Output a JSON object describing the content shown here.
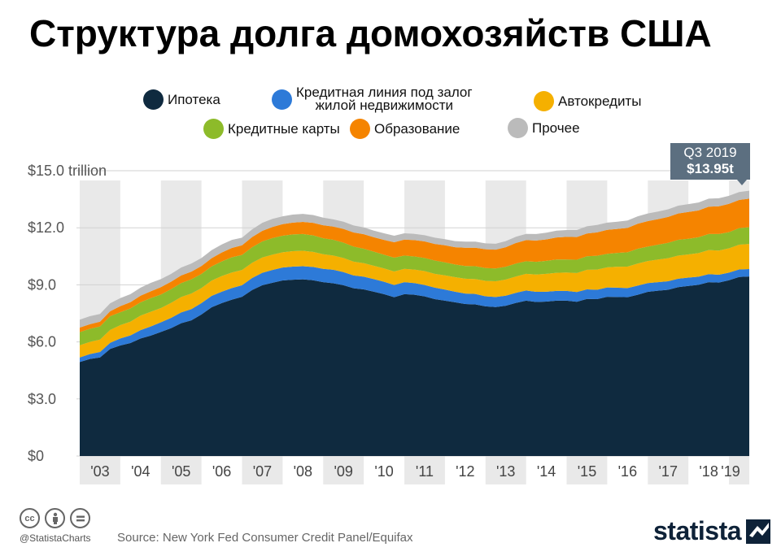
{
  "title": "Структура долга домохозяйств США",
  "legend": [
    {
      "label": "Ипотека",
      "color": "#0f2a3f"
    },
    {
      "label": "Кредитная линия под залог\nжилой недвижимости",
      "color": "#2d7ad8"
    },
    {
      "label": "Автокредиты",
      "color": "#f5b000"
    },
    {
      "label": "Кредитные карты",
      "color": "#8dbb2a"
    },
    {
      "label": "Образование",
      "color": "#f58400"
    },
    {
      "label": "Прочее",
      "color": "#bbbbbb"
    }
  ],
  "callout": {
    "period": "Q3 2019",
    "value": "$13.95t"
  },
  "footer": {
    "handle": "@StatistaCharts",
    "source": "Source: New York Fed Consumer Credit Panel/Equifax",
    "brand": "statista",
    "icons": [
      "cc-icon",
      "by-icon",
      "nd-icon"
    ]
  },
  "chart_data": {
    "type": "area",
    "stacked": true,
    "title": "Структура долга домохозяйств США",
    "x_tick_labels": [
      "'03",
      "'04",
      "'05",
      "'06",
      "'07",
      "'08",
      "'09",
      "'10",
      "'11",
      "'12",
      "'13",
      "'14",
      "'15",
      "'16",
      "'17",
      "'18",
      "'19"
    ],
    "y_tick_labels": [
      "$0",
      "$3.0",
      "$6.0",
      "$9.0",
      "$12.0",
      "$15.0 trillion"
    ],
    "ylim": [
      0,
      15
    ],
    "y_ticks": [
      0,
      3,
      6,
      9,
      12,
      15
    ],
    "grid": true,
    "alternating_year_bands": true,
    "annotation": {
      "x": "2019 Q3",
      "value": 13.95,
      "text": "Q3 2019 $13.95t"
    },
    "x": [
      "2003 Q1",
      "2003 Q2",
      "2003 Q3",
      "2003 Q4",
      "2004 Q1",
      "2004 Q2",
      "2004 Q3",
      "2004 Q4",
      "2005 Q1",
      "2005 Q2",
      "2005 Q3",
      "2005 Q4",
      "2006 Q1",
      "2006 Q2",
      "2006 Q3",
      "2006 Q4",
      "2007 Q1",
      "2007 Q2",
      "2007 Q3",
      "2007 Q4",
      "2008 Q1",
      "2008 Q2",
      "2008 Q3",
      "2008 Q4",
      "2009 Q1",
      "2009 Q2",
      "2009 Q3",
      "2009 Q4",
      "2010 Q1",
      "2010 Q2",
      "2010 Q3",
      "2010 Q4",
      "2011 Q1",
      "2011 Q2",
      "2011 Q3",
      "2011 Q4",
      "2012 Q1",
      "2012 Q2",
      "2012 Q3",
      "2012 Q4",
      "2013 Q1",
      "2013 Q2",
      "2013 Q3",
      "2013 Q4",
      "2014 Q1",
      "2014 Q2",
      "2014 Q3",
      "2014 Q4",
      "2015 Q1",
      "2015 Q2",
      "2015 Q3",
      "2015 Q4",
      "2016 Q1",
      "2016 Q2",
      "2016 Q3",
      "2016 Q4",
      "2017 Q1",
      "2017 Q2",
      "2017 Q3",
      "2017 Q4",
      "2018 Q1",
      "2018 Q2",
      "2018 Q3",
      "2018 Q4",
      "2019 Q1",
      "2019 Q2",
      "2019 Q3"
    ],
    "series": [
      {
        "name": "Ипотека",
        "color": "#0f2a3f",
        "values": [
          4.94,
          5.1,
          5.18,
          5.63,
          5.81,
          5.94,
          6.18,
          6.33,
          6.52,
          6.72,
          6.98,
          7.13,
          7.44,
          7.82,
          8.04,
          8.22,
          8.37,
          8.73,
          8.98,
          9.11,
          9.23,
          9.27,
          9.29,
          9.24,
          9.14,
          9.08,
          8.98,
          8.82,
          8.76,
          8.64,
          8.51,
          8.35,
          8.51,
          8.48,
          8.39,
          8.25,
          8.17,
          8.08,
          7.99,
          7.97,
          7.87,
          7.83,
          7.9,
          8.05,
          8.17,
          8.1,
          8.12,
          8.17,
          8.17,
          8.11,
          8.26,
          8.25,
          8.37,
          8.36,
          8.35,
          8.48,
          8.63,
          8.69,
          8.74,
          8.88,
          8.94,
          9.0,
          9.14,
          9.12,
          9.24,
          9.41,
          9.44
        ]
      },
      {
        "name": "Кредитная линия под залог\nжилой недвижимости",
        "color": "#2d7ad8",
        "values": [
          0.24,
          0.26,
          0.29,
          0.32,
          0.37,
          0.4,
          0.44,
          0.48,
          0.51,
          0.54,
          0.57,
          0.59,
          0.6,
          0.6,
          0.6,
          0.61,
          0.61,
          0.63,
          0.65,
          0.67,
          0.68,
          0.69,
          0.69,
          0.7,
          0.7,
          0.71,
          0.69,
          0.67,
          0.67,
          0.66,
          0.65,
          0.64,
          0.63,
          0.61,
          0.6,
          0.6,
          0.58,
          0.56,
          0.55,
          0.55,
          0.53,
          0.53,
          0.53,
          0.53,
          0.53,
          0.53,
          0.52,
          0.51,
          0.51,
          0.51,
          0.5,
          0.49,
          0.49,
          0.49,
          0.48,
          0.48,
          0.46,
          0.45,
          0.45,
          0.44,
          0.44,
          0.43,
          0.42,
          0.41,
          0.4,
          0.4,
          0.39
        ]
      },
      {
        "name": "Автокредиты",
        "color": "#f5b000",
        "values": [
          0.64,
          0.64,
          0.65,
          0.68,
          0.7,
          0.72,
          0.76,
          0.77,
          0.75,
          0.79,
          0.81,
          0.82,
          0.79,
          0.8,
          0.82,
          0.82,
          0.8,
          0.8,
          0.81,
          0.81,
          0.8,
          0.81,
          0.81,
          0.79,
          0.77,
          0.75,
          0.74,
          0.73,
          0.71,
          0.7,
          0.7,
          0.71,
          0.7,
          0.71,
          0.73,
          0.73,
          0.75,
          0.76,
          0.78,
          0.78,
          0.81,
          0.83,
          0.85,
          0.86,
          0.88,
          0.91,
          0.94,
          0.95,
          0.97,
          1.0,
          1.03,
          1.06,
          1.06,
          1.1,
          1.13,
          1.16,
          1.16,
          1.19,
          1.21,
          1.22,
          1.22,
          1.24,
          1.27,
          1.27,
          1.28,
          1.3,
          1.32
        ]
      },
      {
        "name": "Кредитные карты",
        "color": "#8dbb2a",
        "values": [
          0.69,
          0.69,
          0.69,
          0.72,
          0.68,
          0.7,
          0.7,
          0.72,
          0.71,
          0.72,
          0.73,
          0.75,
          0.74,
          0.75,
          0.77,
          0.8,
          0.79,
          0.82,
          0.84,
          0.87,
          0.87,
          0.88,
          0.88,
          0.87,
          0.84,
          0.83,
          0.81,
          0.79,
          0.76,
          0.74,
          0.72,
          0.73,
          0.7,
          0.69,
          0.69,
          0.7,
          0.68,
          0.67,
          0.67,
          0.68,
          0.67,
          0.67,
          0.67,
          0.68,
          0.66,
          0.67,
          0.68,
          0.7,
          0.68,
          0.7,
          0.71,
          0.73,
          0.71,
          0.73,
          0.75,
          0.78,
          0.76,
          0.78,
          0.81,
          0.83,
          0.82,
          0.83,
          0.84,
          0.87,
          0.85,
          0.87,
          0.88
        ]
      },
      {
        "name": "Образование",
        "color": "#f58400",
        "values": [
          0.24,
          0.24,
          0.25,
          0.26,
          0.32,
          0.33,
          0.35,
          0.36,
          0.39,
          0.39,
          0.4,
          0.4,
          0.42,
          0.43,
          0.47,
          0.49,
          0.51,
          0.53,
          0.56,
          0.58,
          0.61,
          0.62,
          0.64,
          0.66,
          0.68,
          0.69,
          0.72,
          0.74,
          0.76,
          0.76,
          0.78,
          0.81,
          0.84,
          0.86,
          0.87,
          0.87,
          0.9,
          0.91,
          0.96,
          0.97,
          0.99,
          0.99,
          1.03,
          1.08,
          1.11,
          1.12,
          1.13,
          1.16,
          1.19,
          1.19,
          1.2,
          1.23,
          1.26,
          1.26,
          1.28,
          1.31,
          1.34,
          1.34,
          1.36,
          1.38,
          1.41,
          1.41,
          1.44,
          1.46,
          1.49,
          1.48,
          1.5
        ]
      },
      {
        "name": "Прочее",
        "color": "#bbbbbb",
        "values": [
          0.42,
          0.42,
          0.41,
          0.42,
          0.42,
          0.42,
          0.42,
          0.44,
          0.42,
          0.41,
          0.42,
          0.43,
          0.42,
          0.42,
          0.42,
          0.42,
          0.4,
          0.41,
          0.42,
          0.43,
          0.41,
          0.42,
          0.42,
          0.41,
          0.4,
          0.38,
          0.38,
          0.37,
          0.36,
          0.35,
          0.35,
          0.34,
          0.33,
          0.33,
          0.33,
          0.33,
          0.32,
          0.32,
          0.32,
          0.32,
          0.31,
          0.31,
          0.32,
          0.33,
          0.33,
          0.34,
          0.35,
          0.36,
          0.36,
          0.37,
          0.38,
          0.39,
          0.38,
          0.38,
          0.39,
          0.39,
          0.4,
          0.4,
          0.4,
          0.41,
          0.41,
          0.42,
          0.42,
          0.42,
          0.42,
          0.42,
          0.42
        ]
      }
    ]
  }
}
